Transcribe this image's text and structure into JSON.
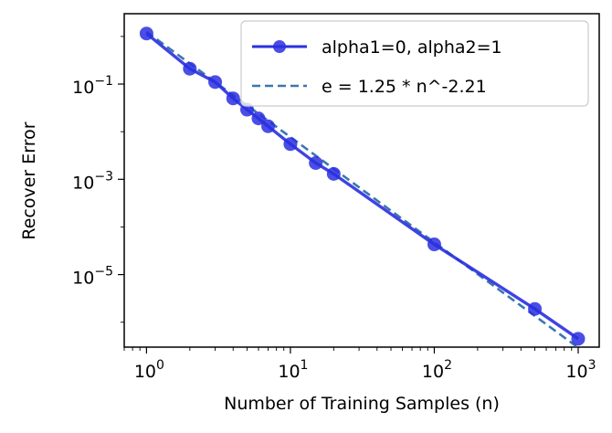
{
  "chart_data": {
    "type": "line",
    "title": "",
    "xlabel": "Number of Training Samples (n)",
    "ylabel": "Recover Error",
    "xscale": "log",
    "yscale": "log",
    "xlim": [
      0.7,
      1400
    ],
    "ylim": [
      3e-07,
      3
    ],
    "x_ticks": [
      {
        "value": 1,
        "base": "10",
        "exp": "0"
      },
      {
        "value": 10,
        "base": "10",
        "exp": "1"
      },
      {
        "value": 100,
        "base": "10",
        "exp": "2"
      },
      {
        "value": 1000,
        "base": "10",
        "exp": "3"
      }
    ],
    "y_ticks": [
      {
        "value": 0.1,
        "base": "10",
        "exp": "−1"
      },
      {
        "value": 0.001,
        "base": "10",
        "exp": "−3"
      },
      {
        "value": 1e-05,
        "base": "10",
        "exp": "−5"
      }
    ],
    "grid": false,
    "legend_position": "top-right",
    "series": [
      {
        "name": "alpha1=0, alpha2=1",
        "style": "solid-line-circle-markers",
        "color": "#2a2fe0",
        "x": [
          1,
          2,
          3,
          4,
          5,
          6,
          7,
          10,
          15,
          20,
          100,
          500,
          1000
        ],
        "y": [
          1.15,
          0.21,
          0.11,
          0.05,
          0.029,
          0.019,
          0.013,
          0.0055,
          0.0022,
          0.0013,
          4.3e-05,
          1.9e-06,
          4.5e-07
        ]
      },
      {
        "name": "e = 1.25 * n^-2.21",
        "style": "dashed-line",
        "color": "#3a77b0",
        "fit": {
          "a": 1.25,
          "b": -2.21
        },
        "x_range": [
          1,
          1000
        ]
      }
    ]
  }
}
